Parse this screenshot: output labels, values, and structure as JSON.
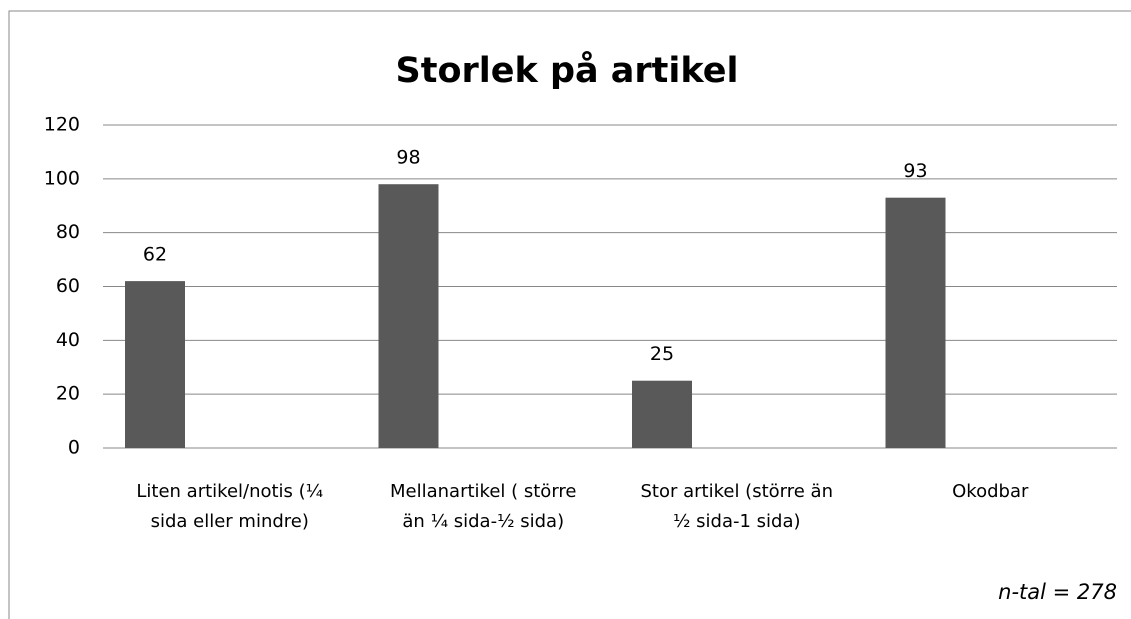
{
  "chart_data": {
    "type": "bar",
    "title": "Storlek på artikel",
    "categories": [
      "Liten artikel/notis (¼ sida eller mindre)",
      "Mellanartikel ( större än ¼ sida-½ sida)",
      "Stor artikel (större än ½ sida-1 sida)",
      "Okodbar"
    ],
    "values": [
      62,
      98,
      25,
      93
    ],
    "color": "#595959",
    "ylim": [
      0,
      120
    ],
    "yticks": [
      0,
      20,
      40,
      60,
      80,
      100,
      120
    ],
    "grid": true,
    "annotation": "n-tal = 278"
  }
}
